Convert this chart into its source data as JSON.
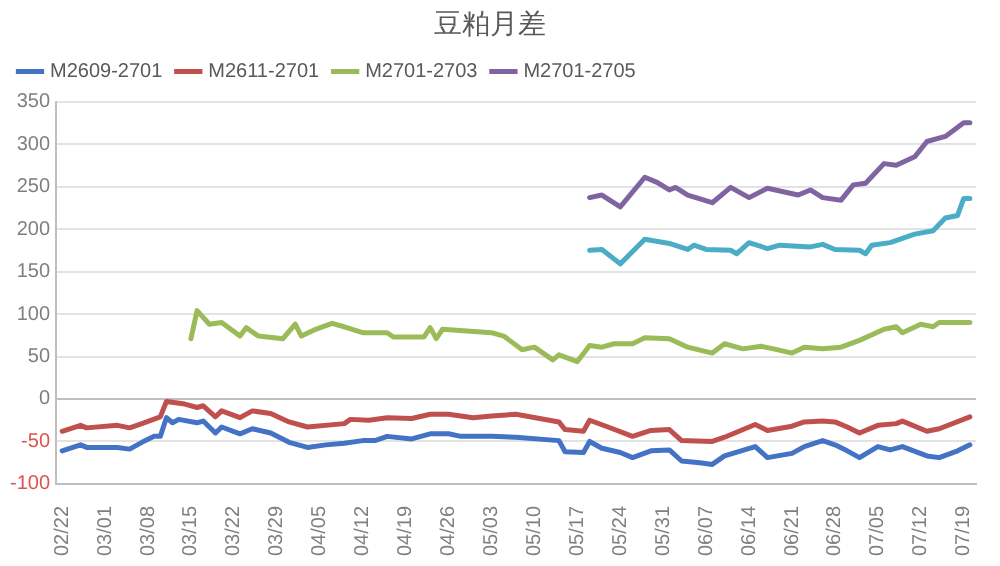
{
  "chart_data": {
    "type": "line",
    "title": "豆粕月差",
    "marker": "none",
    "grid": "y",
    "legend": "top left",
    "xlim": [
      "--02-21",
      "--07-21"
    ],
    "xticks": [
      {
        "value": "--02-22",
        "label": "02/22"
      },
      {
        "value": "--03-01",
        "label": "03/01"
      },
      {
        "value": "--03-08",
        "label": "03/08"
      },
      {
        "value": "--03-15",
        "label": "03/15"
      },
      {
        "value": "--03-22",
        "label": "03/22"
      },
      {
        "value": "--03-29",
        "label": "03/29"
      },
      {
        "value": "--04-05",
        "label": "04/05"
      },
      {
        "value": "--04-12",
        "label": "04/12"
      },
      {
        "value": "--04-19",
        "label": "04/19"
      },
      {
        "value": "--04-26",
        "label": "04/26"
      },
      {
        "value": "--05-03",
        "label": "05/03"
      },
      {
        "value": "--05-10",
        "label": "05/10"
      },
      {
        "value": "--05-17",
        "label": "05/17"
      },
      {
        "value": "--05-24",
        "label": "05/24"
      },
      {
        "value": "--05-31",
        "label": "05/31"
      },
      {
        "value": "--06-07",
        "label": "06/07"
      },
      {
        "value": "--06-14",
        "label": "06/14"
      },
      {
        "value": "--06-21",
        "label": "06/21"
      },
      {
        "value": "--06-28",
        "label": "06/28"
      },
      {
        "value": "--07-05",
        "label": "07/05"
      },
      {
        "value": "--07-12",
        "label": "07/12"
      },
      {
        "value": "--07-19",
        "label": "07/19"
      }
    ],
    "ylim": [
      -100,
      350
    ],
    "yticks": [
      -100,
      -50,
      0,
      50,
      100,
      150,
      200,
      250,
      300,
      350
    ],
    "series": [
      {
        "name": "M2609-2701",
        "color": "#4472c4",
        "x": [
          "--02-22",
          "--02-25",
          "--02-26",
          "--03-03",
          "--03-05",
          "--03-07",
          "--03-09",
          "--03-10",
          "--03-11",
          "--03-12",
          "--03-13",
          "--03-16",
          "--03-17",
          "--03-19",
          "--03-20",
          "--03-23",
          "--03-25",
          "--03-28",
          "--03-31",
          "--04-03",
          "--04-06",
          "--04-09",
          "--04-12",
          "--04-14",
          "--04-16",
          "--04-20",
          "--04-23",
          "--04-26",
          "--04-28",
          "--05-03",
          "--05-07",
          "--05-14",
          "--05-15",
          "--05-18",
          "--05-19",
          "--05-21",
          "--05-24",
          "--05-26",
          "--05-29",
          "--06-01",
          "--06-03",
          "--06-06",
          "--06-08",
          "--06-10",
          "--06-15",
          "--06-17",
          "--06-21",
          "--06-23",
          "--06-26",
          "--06-28",
          "--06-30",
          "--07-02",
          "--07-05",
          "--07-07",
          "--07-09",
          "--07-13",
          "--07-15",
          "--07-18",
          "--07-20"
        ],
        "values": [
          -61,
          -54,
          -57,
          -57,
          -59,
          -51,
          -44,
          -44,
          -22,
          -28,
          -24,
          -28,
          -26,
          -40,
          -33,
          -41,
          -35,
          -40,
          -51,
          -57,
          -54,
          -52,
          -49,
          -49,
          -44,
          -47,
          -41,
          -41,
          -44,
          -44,
          -45,
          -49,
          -62,
          -63,
          -50,
          -58,
          -63,
          -69,
          -61,
          -60,
          -73,
          -75,
          -77,
          -67,
          -56,
          -69,
          -64,
          -56,
          -49,
          -54,
          -61,
          -69,
          -56,
          -60,
          -56,
          -67,
          -69,
          -61,
          -54
        ]
      },
      {
        "name": "M2611-2701",
        "color": "#c0504d",
        "x": [
          "--02-22",
          "--02-25",
          "--02-26",
          "--03-03",
          "--03-05",
          "--03-07",
          "--03-10",
          "--03-11",
          "--03-14",
          "--03-16",
          "--03-17",
          "--03-19",
          "--03-20",
          "--03-23",
          "--03-25",
          "--03-28",
          "--03-31",
          "--04-03",
          "--04-09",
          "--04-10",
          "--04-13",
          "--04-16",
          "--04-20",
          "--04-23",
          "--04-26",
          "--04-30",
          "--05-03",
          "--05-07",
          "--05-14",
          "--05-15",
          "--05-18",
          "--05-19",
          "--05-22",
          "--05-26",
          "--05-29",
          "--06-01",
          "--06-03",
          "--06-08",
          "--06-10",
          "--06-15",
          "--06-17",
          "--06-21",
          "--06-23",
          "--06-26",
          "--06-28",
          "--06-30",
          "--07-02",
          "--07-05",
          "--07-08",
          "--07-09",
          "--07-13",
          "--07-15",
          "--07-20"
        ],
        "values": [
          -38,
          -31,
          -34,
          -31,
          -34,
          -29,
          -21,
          -3,
          -6,
          -10,
          -8,
          -21,
          -14,
          -22,
          -14,
          -17,
          -27,
          -33,
          -29,
          -24,
          -25,
          -22,
          -23,
          -18,
          -18,
          -22,
          -20,
          -18,
          -27,
          -36,
          -38,
          -25,
          -33,
          -44,
          -37,
          -36,
          -49,
          -50,
          -45,
          -30,
          -37,
          -32,
          -27,
          -26,
          -27,
          -33,
          -40,
          -31,
          -29,
          -26,
          -38,
          -35,
          -21
        ]
      },
      {
        "name": "M2701-2703",
        "color": "#9bbb59",
        "x": [
          "--03-15",
          "--03-16",
          "--03-18",
          "--03-20",
          "--03-23",
          "--03-24",
          "--03-26",
          "--03-30",
          "--04-01",
          "--04-02",
          "--04-04",
          "--04-07",
          "--04-09",
          "--04-12",
          "--04-16",
          "--04-17",
          "--04-22",
          "--04-23",
          "--04-24",
          "--04-25",
          "--05-03",
          "--05-05",
          "--05-08",
          "--05-10",
          "--05-13",
          "--05-14",
          "--05-17",
          "--05-19",
          "--05-21",
          "--05-23",
          "--05-26",
          "--05-28",
          "--06-01",
          "--06-04",
          "--06-08",
          "--06-10",
          "--06-13",
          "--06-16",
          "--06-18",
          "--06-21",
          "--06-23",
          "--06-26",
          "--06-29",
          "--07-02",
          "--07-06",
          "--07-08",
          "--07-09",
          "--07-12",
          "--07-14",
          "--07-15",
          "--07-20"
        ],
        "values": [
          71,
          104,
          88,
          90,
          74,
          84,
          74,
          71,
          88,
          74,
          81,
          89,
          85,
          78,
          78,
          73,
          73,
          84,
          71,
          82,
          78,
          74,
          58,
          61,
          46,
          52,
          44,
          63,
          61,
          65,
          65,
          72,
          71,
          61,
          54,
          65,
          59,
          62,
          59,
          54,
          61,
          59,
          61,
          69,
          82,
          85,
          78,
          88,
          85,
          90,
          90
        ]
      },
      {
        "name": "M2701-2705",
        "color": "#8064a2",
        "x": [
          "--05-19",
          "--05-21",
          "--05-24",
          "--05-28",
          "--05-30",
          "--06-01",
          "--06-02",
          "--06-04",
          "--06-08",
          "--06-11",
          "--06-14",
          "--06-17",
          "--06-22",
          "--06-24",
          "--06-26",
          "--06-29",
          "--07-01",
          "--07-03",
          "--07-06",
          "--07-08",
          "--07-11",
          "--07-13",
          "--07-16",
          "--07-19",
          "--07-20"
        ],
        "values": [
          237,
          240,
          226,
          261,
          255,
          246,
          249,
          240,
          231,
          249,
          237,
          248,
          240,
          246,
          237,
          234,
          252,
          254,
          277,
          275,
          285,
          303,
          309,
          325,
          325
        ]
      },
      {
        "color": "#4bacc6",
        "x": [
          "--05-19",
          "--05-21",
          "--05-24",
          "--05-28",
          "--06-01",
          "--06-04",
          "--06-05",
          "--06-07",
          "--06-11",
          "--06-12",
          "--06-14",
          "--06-17",
          "--06-19",
          "--06-24",
          "--06-26",
          "--06-28",
          "--07-02",
          "--07-03",
          "--07-04",
          "--07-07",
          "--07-11",
          "--07-14",
          "--07-16",
          "--07-18",
          "--07-19",
          "--07-20"
        ],
        "values": [
          175,
          176,
          159,
          188,
          183,
          176,
          181,
          176,
          175,
          171,
          184,
          177,
          181,
          179,
          182,
          176,
          175,
          171,
          181,
          184,
          194,
          198,
          213,
          216,
          236,
          236
        ]
      }
    ]
  }
}
